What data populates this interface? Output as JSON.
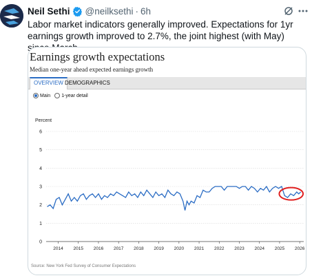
{
  "author": {
    "name": "Neil Sethi",
    "handle": "@neilksethi",
    "separator": "·",
    "time": "6h"
  },
  "tweet_text": "Labor market indicators generally improved. Expectations for 1yr earnings growth improved to 2.7%, the joint highest (with May) since March.",
  "icons": {
    "avatar": "avatar-logo",
    "verified": "verified-badge-icon",
    "grok": "grok-icon",
    "more": "more-options-icon"
  },
  "colors": {
    "line": "#2a6cc4",
    "highlight": "#e02020",
    "verified": "#1d9bf0"
  },
  "card": {
    "title": "Earnings growth expectations",
    "subtitle": "Median one-year ahead expected earnings growth",
    "tabs": [
      "OVERVIEW",
      "DEMOGRAPHICS"
    ],
    "active_tab": "OVERVIEW",
    "radio_options": [
      "Main",
      "1-year detail"
    ],
    "radio_selected": "Main",
    "source": "Source: New York Fed Survey of Consumer Expectations"
  },
  "chart_data": {
    "type": "line",
    "ylabel": "Percent",
    "ylim": [
      0,
      6
    ],
    "yticks": [
      "0",
      "1",
      "2",
      "3",
      "4",
      "5",
      "6"
    ],
    "xticks": [
      "2014",
      "2015",
      "2016",
      "2017",
      "2018",
      "2019",
      "2020",
      "2021",
      "2022",
      "2023",
      "2024",
      "2025",
      "2026"
    ],
    "xlim": [
      2013.4,
      2026.2
    ],
    "grid": true,
    "annotation": "red-ellipse-around-latest-2025-values",
    "x": [
      2013.45,
      2013.6,
      2013.75,
      2013.9,
      2014.05,
      2014.2,
      2014.35,
      2014.5,
      2014.65,
      2014.8,
      2014.95,
      2015.1,
      2015.25,
      2015.4,
      2015.55,
      2015.7,
      2015.85,
      2016.0,
      2016.15,
      2016.3,
      2016.45,
      2016.6,
      2016.75,
      2016.9,
      2017.05,
      2017.2,
      2017.35,
      2017.5,
      2017.65,
      2017.8,
      2017.95,
      2018.1,
      2018.25,
      2018.4,
      2018.55,
      2018.7,
      2018.85,
      2019.0,
      2019.15,
      2019.3,
      2019.45,
      2019.6,
      2019.75,
      2019.9,
      2020.05,
      2020.2,
      2020.3,
      2020.4,
      2020.5,
      2020.6,
      2020.75,
      2020.9,
      2021.05,
      2021.2,
      2021.35,
      2021.5,
      2021.65,
      2021.8,
      2021.95,
      2022.1,
      2022.25,
      2022.4,
      2022.55,
      2022.7,
      2022.85,
      2023.0,
      2023.15,
      2023.3,
      2023.45,
      2023.6,
      2023.75,
      2023.9,
      2024.05,
      2024.2,
      2024.35,
      2024.5,
      2024.65,
      2024.8,
      2024.95,
      2025.1,
      2025.25,
      2025.4,
      2025.55,
      2025.7,
      2025.85,
      2025.95,
      2026.05
    ],
    "series": [
      {
        "values": [
          1.9,
          2.0,
          1.8,
          2.3,
          2.4,
          2.0,
          2.3,
          2.6,
          2.2,
          2.4,
          2.2,
          2.5,
          2.6,
          2.3,
          2.5,
          2.6,
          2.4,
          2.6,
          2.3,
          2.5,
          2.4,
          2.6,
          2.5,
          2.7,
          2.6,
          2.5,
          2.4,
          2.7,
          2.5,
          2.6,
          2.4,
          2.7,
          2.5,
          2.8,
          2.6,
          2.4,
          2.7,
          2.5,
          2.6,
          2.4,
          2.8,
          2.6,
          2.5,
          2.7,
          2.6,
          2.2,
          1.7,
          2.2,
          2.0,
          2.2,
          2.1,
          2.5,
          2.4,
          2.8,
          2.7,
          2.7,
          2.9,
          3.0,
          3.0,
          3.0,
          2.8,
          3.0,
          3.0,
          3.0,
          3.0,
          2.9,
          3.0,
          3.0,
          2.8,
          3.0,
          2.9,
          2.7,
          2.9,
          2.8,
          3.0,
          2.7,
          2.9,
          3.0,
          2.9,
          3.0,
          2.5,
          2.4,
          2.6,
          2.5,
          2.7,
          2.6,
          2.7
        ]
      }
    ]
  }
}
